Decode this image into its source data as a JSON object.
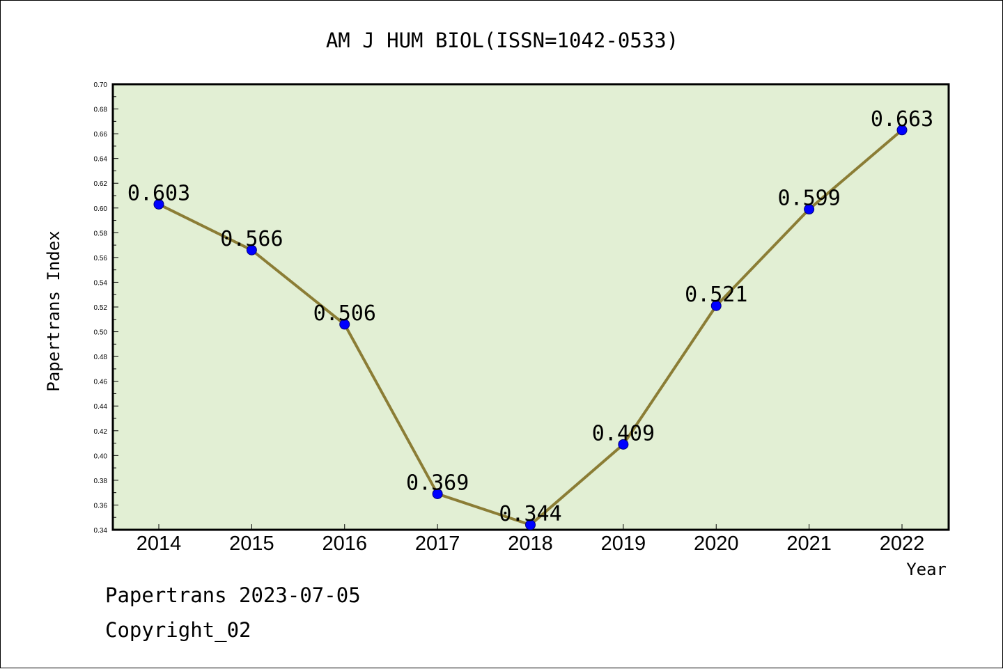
{
  "chart_data": {
    "type": "line",
    "title": "AM J HUM BIOL(ISSN=1042-0533)",
    "xlabel": "Year",
    "ylabel": "Papertrans Index",
    "categories": [
      "2014",
      "2015",
      "2016",
      "2017",
      "2018",
      "2019",
      "2020",
      "2021",
      "2022"
    ],
    "series": [
      {
        "values": [
          0.603,
          0.566,
          0.506,
          0.369,
          0.344,
          0.409,
          0.521,
          0.599,
          0.663
        ],
        "labels": [
          "0.603",
          "0.566",
          "0.506",
          "0.369",
          "0.344",
          "0.409",
          "0.521",
          "0.599",
          "0.663"
        ]
      }
    ],
    "ylim": [
      0.34,
      0.7
    ],
    "yticks": [
      "0.34",
      "0.36",
      "0.38",
      "0.40",
      "0.42",
      "0.44",
      "0.46",
      "0.48",
      "0.50",
      "0.52",
      "0.54",
      "0.56",
      "0.58",
      "0.60",
      "0.62",
      "0.64",
      "0.66",
      "0.68",
      "0.70"
    ],
    "grid": false,
    "colors": {
      "plot_background": "#e2efd4",
      "line": "#8b7d35",
      "marker": "#0000ff"
    }
  },
  "footer": {
    "date_line": "Papertrans 2023-07-05",
    "copyright": "Copyright_02"
  }
}
